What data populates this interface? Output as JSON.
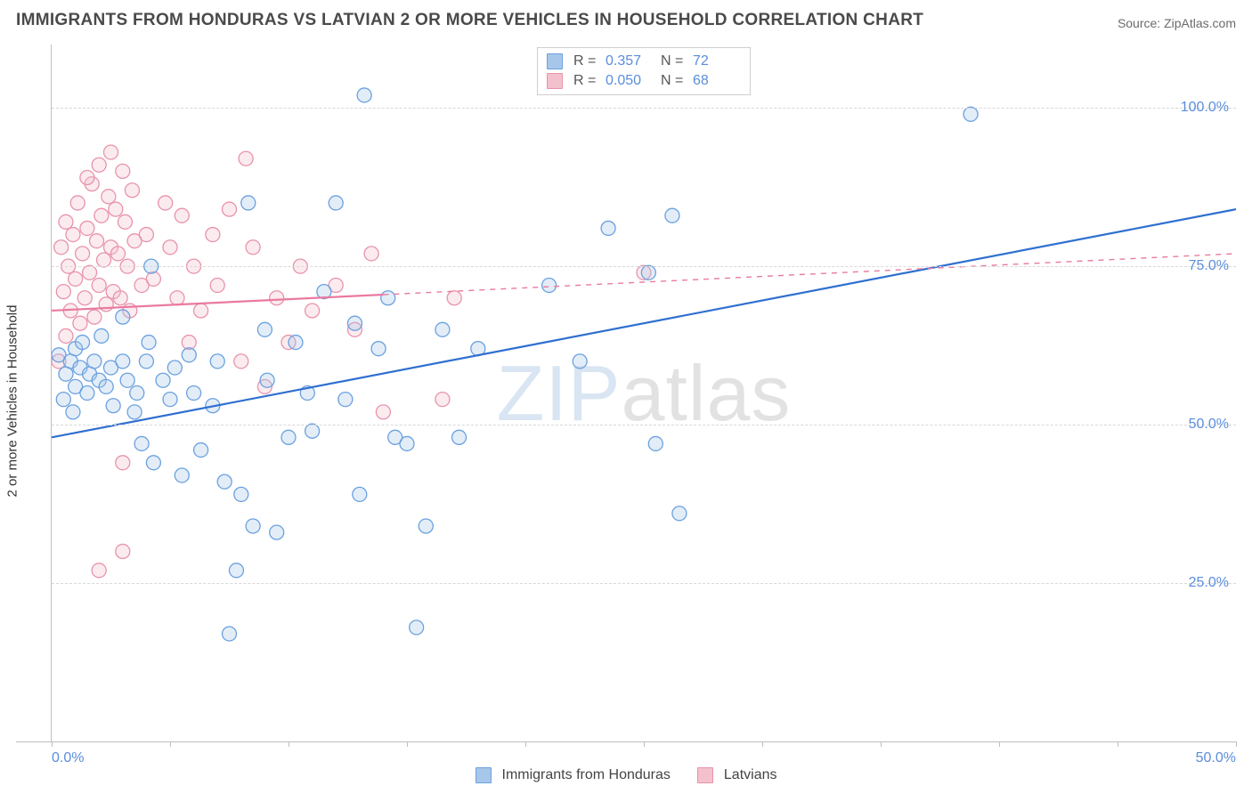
{
  "header": {
    "title": "IMMIGRANTS FROM HONDURAS VS LATVIAN 2 OR MORE VEHICLES IN HOUSEHOLD CORRELATION CHART",
    "source_prefix": "Source: ",
    "source_name": "ZipAtlas.com"
  },
  "watermark": {
    "bold": "ZIP",
    "thin": "atlas"
  },
  "chart": {
    "type": "scatter",
    "ylabel": "2 or more Vehicles in Household",
    "xlim": [
      0,
      50
    ],
    "ylim": [
      0,
      110
    ],
    "x_ticks": [
      0,
      5,
      10,
      15,
      20,
      25,
      30,
      35,
      40,
      45,
      50
    ],
    "x_tick_labels": {
      "0": "0.0%",
      "50": "50.0%"
    },
    "y_gridlines": [
      25,
      50,
      75,
      100
    ],
    "y_tick_labels": {
      "25": "25.0%",
      "50": "50.0%",
      "75": "75.0%",
      "100": "100.0%"
    },
    "background_color": "#ffffff",
    "grid_color": "#d8d8d8",
    "axis_color": "#bfbfbf",
    "tick_label_color": "#5a8ddb",
    "marker_radius": 8,
    "marker_stroke_width": 1.3,
    "marker_fill_opacity": 0.32,
    "line_width": 2.2,
    "series": [
      {
        "id": "honduras",
        "label": "Immigrants from Honduras",
        "color_fill": "#a7c7ea",
        "color_stroke": "#6aa1df",
        "line_color": "#2f6fd0",
        "R": "0.357",
        "N": "72",
        "trend_solid_x": [
          0,
          50
        ],
        "trend_solid_y": [
          48,
          84
        ],
        "points": [
          [
            0.3,
            61
          ],
          [
            0.5,
            54
          ],
          [
            0.6,
            58
          ],
          [
            0.8,
            60
          ],
          [
            0.9,
            52
          ],
          [
            1.0,
            62
          ],
          [
            1.0,
            56
          ],
          [
            1.2,
            59
          ],
          [
            1.3,
            63
          ],
          [
            1.5,
            55
          ],
          [
            1.6,
            58
          ],
          [
            1.8,
            60
          ],
          [
            2.0,
            57
          ],
          [
            2.1,
            64
          ],
          [
            2.3,
            56
          ],
          [
            2.5,
            59
          ],
          [
            2.6,
            53
          ],
          [
            3.0,
            60
          ],
          [
            3.0,
            67
          ],
          [
            3.2,
            57
          ],
          [
            3.5,
            52
          ],
          [
            3.6,
            55
          ],
          [
            4.0,
            60
          ],
          [
            4.1,
            63
          ],
          [
            4.3,
            44
          ],
          [
            4.7,
            57
          ],
          [
            5.0,
            54
          ],
          [
            5.2,
            59
          ],
          [
            5.5,
            42
          ],
          [
            5.8,
            61
          ],
          [
            6.0,
            55
          ],
          [
            6.3,
            46
          ],
          [
            6.8,
            53
          ],
          [
            3.8,
            47
          ],
          [
            7.0,
            60
          ],
          [
            7.3,
            41
          ],
          [
            7.5,
            17
          ],
          [
            7.8,
            27
          ],
          [
            8.0,
            39
          ],
          [
            8.3,
            85
          ],
          [
            4.2,
            75
          ],
          [
            8.5,
            34
          ],
          [
            9.0,
            65
          ],
          [
            9.1,
            57
          ],
          [
            9.5,
            33
          ],
          [
            10.0,
            48
          ],
          [
            10.3,
            63
          ],
          [
            10.8,
            55
          ],
          [
            11.0,
            49
          ],
          [
            11.5,
            71
          ],
          [
            12.0,
            85
          ],
          [
            12.4,
            54
          ],
          [
            12.8,
            66
          ],
          [
            13.0,
            39
          ],
          [
            13.2,
            102
          ],
          [
            13.8,
            62
          ],
          [
            14.2,
            70
          ],
          [
            14.5,
            48
          ],
          [
            15.0,
            47
          ],
          [
            15.4,
            18
          ],
          [
            15.8,
            34
          ],
          [
            16.5,
            65
          ],
          [
            17.2,
            48
          ],
          [
            18.0,
            62
          ],
          [
            21.0,
            72
          ],
          [
            22.3,
            60
          ],
          [
            23.5,
            81
          ],
          [
            25.2,
            74
          ],
          [
            26.2,
            83
          ],
          [
            26.5,
            36
          ],
          [
            38.8,
            99
          ],
          [
            25.5,
            47
          ]
        ]
      },
      {
        "id": "latvians",
        "label": "Latvians",
        "color_fill": "#f3c1cd",
        "color_stroke": "#e893ab",
        "line_color": "#ea7aa0",
        "R": "0.050",
        "N": "68",
        "trend_solid_x": [
          0,
          14
        ],
        "trend_dash_x": [
          14,
          50
        ],
        "trend_y": [
          68,
          77
        ],
        "points": [
          [
            0.3,
            60
          ],
          [
            0.4,
            78
          ],
          [
            0.5,
            71
          ],
          [
            0.6,
            82
          ],
          [
            0.6,
            64
          ],
          [
            0.7,
            75
          ],
          [
            0.8,
            68
          ],
          [
            0.9,
            80
          ],
          [
            1.0,
            73
          ],
          [
            1.1,
            85
          ],
          [
            1.2,
            66
          ],
          [
            1.3,
            77
          ],
          [
            1.4,
            70
          ],
          [
            1.5,
            81
          ],
          [
            1.6,
            74
          ],
          [
            1.7,
            88
          ],
          [
            1.8,
            67
          ],
          [
            1.9,
            79
          ],
          [
            2.0,
            72
          ],
          [
            2.1,
            83
          ],
          [
            2.2,
            76
          ],
          [
            2.3,
            69
          ],
          [
            2.4,
            86
          ],
          [
            2.5,
            78
          ],
          [
            2.6,
            71
          ],
          [
            2.7,
            84
          ],
          [
            2.8,
            77
          ],
          [
            2.9,
            70
          ],
          [
            3.0,
            90
          ],
          [
            3.1,
            82
          ],
          [
            3.2,
            75
          ],
          [
            3.3,
            68
          ],
          [
            3.4,
            87
          ],
          [
            3.5,
            79
          ],
          [
            3.8,
            72
          ],
          [
            1.5,
            89
          ],
          [
            2.0,
            91
          ],
          [
            2.5,
            93
          ],
          [
            3.0,
            44
          ],
          [
            4.0,
            80
          ],
          [
            4.3,
            73
          ],
          [
            4.8,
            85
          ],
          [
            5.0,
            78
          ],
          [
            5.3,
            70
          ],
          [
            3.0,
            30
          ],
          [
            5.5,
            83
          ],
          [
            5.8,
            63
          ],
          [
            6.0,
            75
          ],
          [
            6.3,
            68
          ],
          [
            6.8,
            80
          ],
          [
            7.0,
            72
          ],
          [
            2.0,
            27
          ],
          [
            7.5,
            84
          ],
          [
            8.0,
            60
          ],
          [
            8.5,
            78
          ],
          [
            9.0,
            56
          ],
          [
            9.5,
            70
          ],
          [
            10.0,
            63
          ],
          [
            10.5,
            75
          ],
          [
            11.0,
            68
          ],
          [
            8.2,
            92
          ],
          [
            12.0,
            72
          ],
          [
            12.8,
            65
          ],
          [
            13.5,
            77
          ],
          [
            14.0,
            52
          ],
          [
            16.5,
            54
          ],
          [
            17.0,
            70
          ],
          [
            25.0,
            74
          ]
        ]
      }
    ]
  },
  "legend_top": {
    "R_label": "R =",
    "N_label": "N ="
  },
  "legend_bottom": {
    "items": [
      {
        "label": "Immigrants from Honduras",
        "fill": "#a7c7ea",
        "stroke": "#6aa1df"
      },
      {
        "label": "Latvians",
        "fill": "#f3c1cd",
        "stroke": "#e893ab"
      }
    ]
  }
}
